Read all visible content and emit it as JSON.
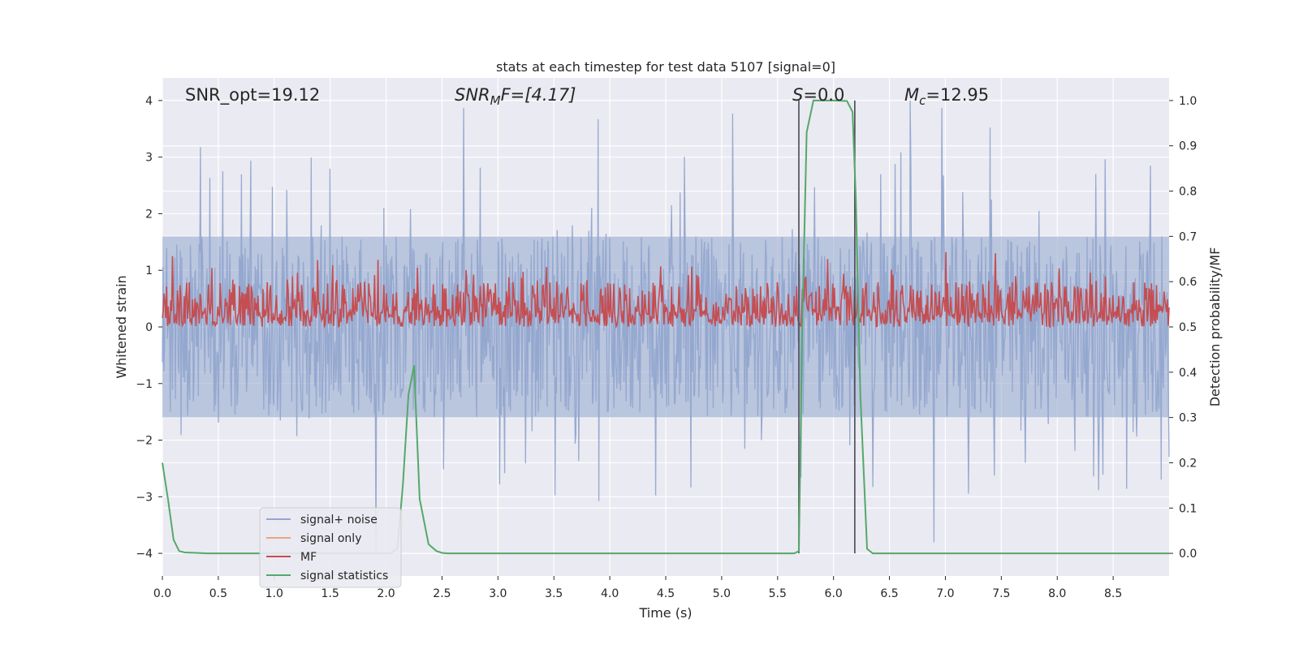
{
  "chart_data": {
    "type": "line",
    "title": "stats at each timestep for test data 5107 [signal=0]",
    "xlabel": "Time (s)",
    "ylabel": "Whitened strain",
    "y2label": "Detection probability/MF",
    "xlim": [
      0.0,
      9.0
    ],
    "ylim": [
      -4.4,
      4.4
    ],
    "y2lim": [
      -0.05,
      1.05
    ],
    "xticks": [
      "0.0",
      "0.5",
      "1.0",
      "1.5",
      "2.0",
      "2.5",
      "3.0",
      "3.5",
      "4.0",
      "4.5",
      "5.0",
      "5.5",
      "6.0",
      "6.5",
      "7.0",
      "7.5",
      "8.0",
      "8.5"
    ],
    "yticks": [
      "4",
      "3",
      "2",
      "1",
      "0",
      "−1",
      "−2",
      "−3",
      "−4"
    ],
    "y2ticks": [
      "1.0",
      "0.9",
      "0.8",
      "0.7",
      "0.6",
      "0.5",
      "0.4",
      "0.3",
      "0.2",
      "0.1",
      "0.0"
    ],
    "grid": true,
    "legend_position": "lower-left",
    "annotations": {
      "snr_opt": "SNR_opt=19.12",
      "snr_mf": "SNR",
      "snr_mf_sub": "M",
      "snr_mf_tail": "F=[4.17]",
      "s_label": "S",
      "s_tail": "=0.0",
      "mc_label": "M",
      "mc_sub": "c",
      "mc_tail": "=12.95"
    },
    "vertical_lines_x": [
      5.69,
      6.19
    ],
    "series": [
      {
        "name": "signal+ noise",
        "color": "#92a6cd",
        "note_shape": "noise band approx ±1.6 with spikes to about ±4"
      },
      {
        "name": "signal only",
        "color": "#e8a584",
        "values": []
      },
      {
        "name": "MF",
        "color": "#c44e52",
        "band": [
          0.5,
          0.65
        ]
      },
      {
        "name": "signal statistics",
        "color": "#55a868",
        "x": [
          0.0,
          0.05,
          0.1,
          0.15,
          0.2,
          0.3,
          0.4,
          0.5,
          1.0,
          1.5,
          2.0,
          2.05,
          2.1,
          2.15,
          2.2,
          2.25,
          2.3,
          2.38,
          2.45,
          2.5,
          2.55,
          2.6,
          3.0,
          4.0,
          5.0,
          5.5,
          5.65,
          5.69,
          5.72,
          5.76,
          5.82,
          6.0,
          6.12,
          6.17,
          6.2,
          6.24,
          6.3,
          6.35,
          7.0,
          8.0,
          9.0
        ],
        "y": [
          0.2,
          0.12,
          0.03,
          0.005,
          0.002,
          0.001,
          0.0,
          0.0,
          0.0,
          0.0,
          0.0,
          0.001,
          0.01,
          0.15,
          0.35,
          0.415,
          0.12,
          0.02,
          0.005,
          0.001,
          0.0,
          0.0,
          0.0,
          0.0,
          0.0,
          0.0,
          0.0,
          0.005,
          0.5,
          0.93,
          1.0,
          1.0,
          0.999,
          0.975,
          0.78,
          0.35,
          0.01,
          0.0,
          0.0,
          0.0,
          0.0
        ]
      }
    ]
  }
}
